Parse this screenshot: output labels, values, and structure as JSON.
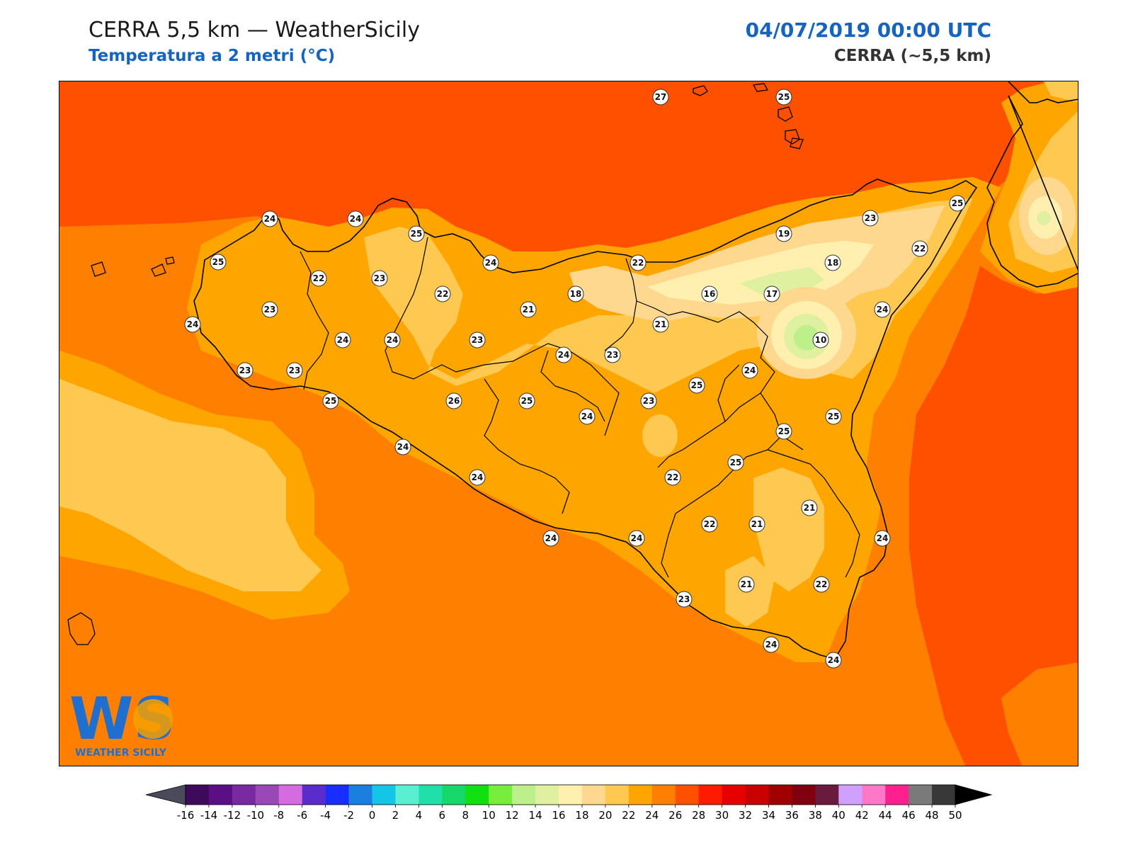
{
  "header": {
    "title": "CERRA 5,5 km — WeatherSicily",
    "subtitle": "Temperatura a 2 metri (°C)",
    "datetime": "04/07/2019 00:00 UTC",
    "model": "CERRA (~5,5 km)"
  },
  "logo": {
    "mark": "WS",
    "text": "WEATHER SICILY",
    "icon": "weather-sicily-logo"
  },
  "colorbar": {
    "ticks": [
      "-16",
      "-14",
      "-12",
      "-10",
      "-8",
      "-6",
      "-4",
      "-2",
      "0",
      "2",
      "4",
      "6",
      "8",
      "10",
      "12",
      "14",
      "16",
      "18",
      "20",
      "22",
      "24",
      "26",
      "28",
      "30",
      "32",
      "34",
      "36",
      "38",
      "40",
      "42",
      "44",
      "46",
      "48",
      "50"
    ],
    "colors": [
      "#3d0a5c",
      "#5a0f85",
      "#7a2aa0",
      "#9a48b8",
      "#d46ce0",
      "#5a2ccc",
      "#1a2dff",
      "#1a7fe0",
      "#14c6e6",
      "#58f0d0",
      "#1ee0a8",
      "#16d86a",
      "#10e010",
      "#78ee3c",
      "#bdf08a",
      "#dff0a0",
      "#fff0b0",
      "#ffd890",
      "#ffc850",
      "#ffa500",
      "#ff8000",
      "#ff5000",
      "#ff1a00",
      "#e60000",
      "#c80000",
      "#a00000",
      "#800010",
      "#6a1a3c",
      "#d0a0ff",
      "#ff78c8",
      "#ff2090",
      "#7a7a7a",
      "#383838"
    ],
    "under_color": "#4a4a5a",
    "over_color": "#000000"
  },
  "map": {
    "background_level_color": "#ff8000",
    "sea_north_color": "#ff5000",
    "coast_color": "#000000",
    "station_values": [
      {
        "id": "s1",
        "value": "27"
      },
      {
        "id": "s2",
        "value": "25"
      },
      {
        "id": "s3",
        "value": "24"
      },
      {
        "id": "s4",
        "value": "24"
      },
      {
        "id": "s5",
        "value": "25"
      },
      {
        "id": "s6",
        "value": "25"
      },
      {
        "id": "s7",
        "value": "22"
      },
      {
        "id": "s8",
        "value": "23"
      },
      {
        "id": "s9",
        "value": "24"
      },
      {
        "id": "s10",
        "value": "22"
      },
      {
        "id": "s11",
        "value": "23"
      },
      {
        "id": "s12",
        "value": "22"
      },
      {
        "id": "s13",
        "value": "18"
      },
      {
        "id": "s14",
        "value": "21"
      },
      {
        "id": "s15",
        "value": "19"
      },
      {
        "id": "s16",
        "value": "23"
      },
      {
        "id": "s17",
        "value": "25"
      },
      {
        "id": "s18",
        "value": "22"
      },
      {
        "id": "s19",
        "value": "18"
      },
      {
        "id": "s20",
        "value": "16"
      },
      {
        "id": "s21",
        "value": "17"
      },
      {
        "id": "s22",
        "value": "24"
      },
      {
        "id": "s23",
        "value": "21"
      },
      {
        "id": "s24",
        "value": "24"
      },
      {
        "id": "s25",
        "value": "24"
      },
      {
        "id": "s26",
        "value": "24"
      },
      {
        "id": "s27",
        "value": "23"
      },
      {
        "id": "s28",
        "value": "10"
      },
      {
        "id": "s29",
        "value": "24"
      },
      {
        "id": "s30",
        "value": "23"
      },
      {
        "id": "s31",
        "value": "23"
      },
      {
        "id": "s32",
        "value": "23"
      },
      {
        "id": "s33",
        "value": "25"
      },
      {
        "id": "s34",
        "value": "24"
      },
      {
        "id": "s35",
        "value": "25"
      },
      {
        "id": "s36",
        "value": "26"
      },
      {
        "id": "s37",
        "value": "25"
      },
      {
        "id": "s38",
        "value": "24"
      },
      {
        "id": "s39",
        "value": "23"
      },
      {
        "id": "s40",
        "value": "24"
      },
      {
        "id": "s41",
        "value": "25"
      },
      {
        "id": "s42",
        "value": "25"
      },
      {
        "id": "s43",
        "value": "22"
      },
      {
        "id": "s44",
        "value": "25"
      },
      {
        "id": "s45",
        "value": "24"
      },
      {
        "id": "s46",
        "value": "21"
      },
      {
        "id": "s47",
        "value": "22"
      },
      {
        "id": "s48",
        "value": "21"
      },
      {
        "id": "s49",
        "value": "24"
      },
      {
        "id": "s50",
        "value": "24"
      },
      {
        "id": "s51",
        "value": "21"
      },
      {
        "id": "s52",
        "value": "22"
      },
      {
        "id": "s53",
        "value": "23"
      },
      {
        "id": "s54",
        "value": "24"
      },
      {
        "id": "s55",
        "value": "24"
      },
      {
        "id": "s56",
        "value": "24"
      }
    ]
  }
}
